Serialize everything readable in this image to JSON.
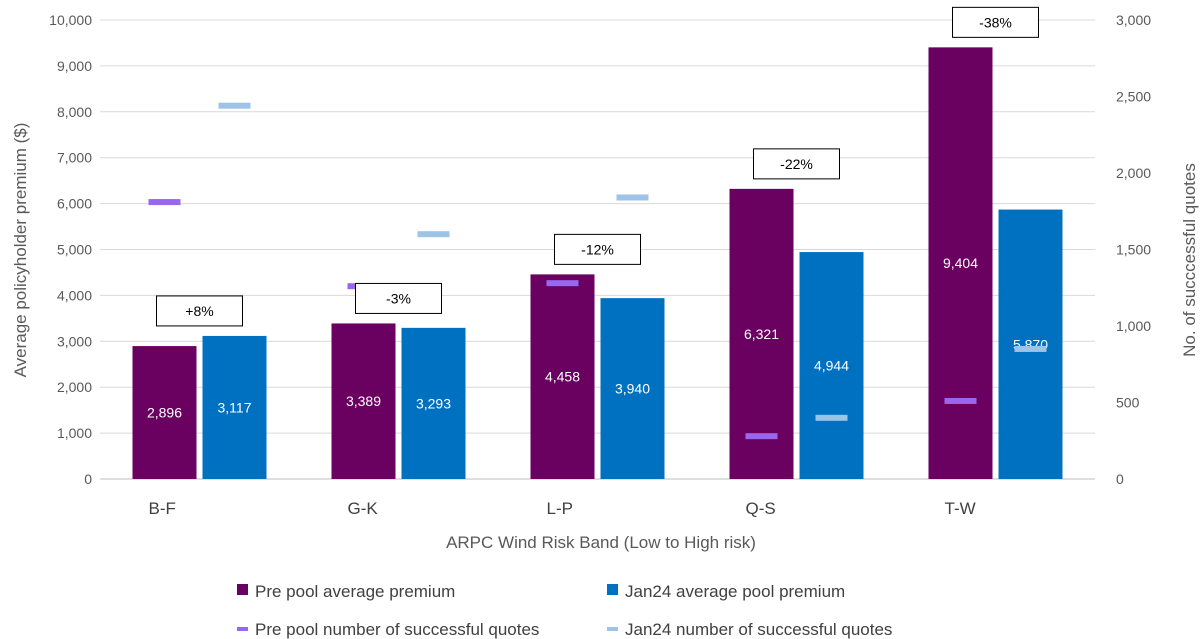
{
  "chart_data": {
    "type": "bar",
    "xlabel": "ARPC Wind Risk Band (Low to High risk)",
    "ylabel": "Average policyholder  premium ($)",
    "y2label": "No. of succcessful quotes",
    "ylim": [
      0,
      10000
    ],
    "y2lim": [
      0,
      3000
    ],
    "yticks": [
      "0",
      "1,000",
      "2,000",
      "3,000",
      "4,000",
      "5,000",
      "6,000",
      "7,000",
      "8,000",
      "9,000",
      "10,000"
    ],
    "y2ticks": [
      "0",
      "500",
      "1,000",
      "1,500",
      "2,000",
      "2,500",
      "3,000"
    ],
    "categories": [
      "B-F",
      "G-K",
      "L-P",
      "Q-S",
      "T-W"
    ],
    "series": [
      {
        "name": "Pre pool average premium",
        "axis": "left",
        "kind": "bar",
        "color": "#6a0060",
        "values": [
          2896,
          3389,
          4458,
          6321,
          9404
        ],
        "labels": [
          "2,896",
          "3,389",
          "4,458",
          "6,321",
          "9,404"
        ]
      },
      {
        "name": "Jan24 average pool premium",
        "axis": "left",
        "kind": "bar",
        "color": "#0070c0",
        "values": [
          3117,
          3293,
          3940,
          4944,
          5870
        ],
        "labels": [
          "3,117",
          "3,293",
          "3,940",
          "4,944",
          "5,870"
        ]
      },
      {
        "name": "Pre pool number of successful quotes",
        "axis": "right",
        "kind": "marker",
        "color": "#9966ee",
        "values": [
          1810,
          1260,
          1280,
          280,
          510
        ]
      },
      {
        "name": "Jan24 number of successful quotes",
        "axis": "right",
        "kind": "marker",
        "color": "#9dc3e6",
        "values": [
          2440,
          1600,
          1840,
          400,
          850
        ]
      }
    ],
    "annotations": [
      "+8%",
      "-3%",
      "-12%",
      "-22%",
      "-38%"
    ],
    "grid": true,
    "legend_position": "bottom"
  }
}
